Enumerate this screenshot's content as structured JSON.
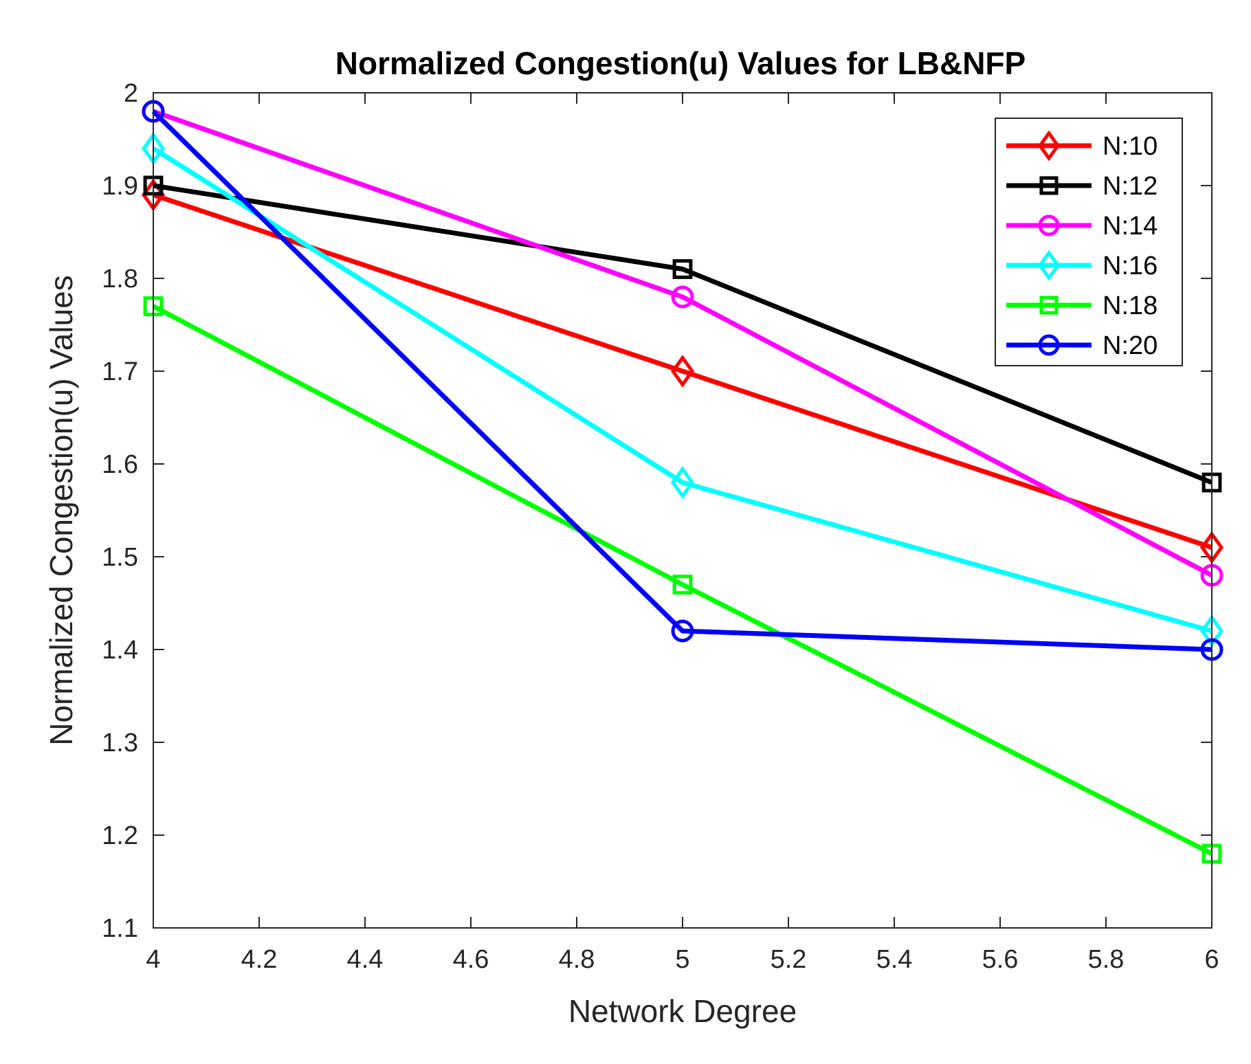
{
  "chart_data": {
    "type": "line",
    "title": "Normalized Congestion(u) Values for LB&NFP",
    "xlabel": "Network Degree",
    "ylabel": "Normalized Congestion(u) Values",
    "xlim": [
      4,
      6
    ],
    "ylim": [
      1.1,
      2
    ],
    "xticks": [
      "4",
      "4.2",
      "4.4",
      "4.6",
      "4.8",
      "5",
      "5.2",
      "5.4",
      "5.6",
      "5.8",
      "6"
    ],
    "yticks": [
      "1.1",
      "1.2",
      "1.3",
      "1.4",
      "1.5",
      "1.6",
      "1.7",
      "1.8",
      "1.9",
      "2"
    ],
    "x": [
      4,
      5,
      6
    ],
    "legend_position": "top-right",
    "grid": false,
    "series": [
      {
        "name": "N:10",
        "values": [
          1.89,
          1.7,
          1.51
        ],
        "color": "#ff0000",
        "marker": "diamond"
      },
      {
        "name": "N:12",
        "values": [
          1.9,
          1.81,
          1.58
        ],
        "color": "#000000",
        "marker": "square"
      },
      {
        "name": "N:14",
        "values": [
          1.98,
          1.78,
          1.48
        ],
        "color": "#ff00ff",
        "marker": "circle"
      },
      {
        "name": "N:16",
        "values": [
          1.94,
          1.58,
          1.42
        ],
        "color": "#00ffff",
        "marker": "diamond"
      },
      {
        "name": "N:18",
        "values": [
          1.77,
          1.47,
          1.18
        ],
        "color": "#00ff00",
        "marker": "square"
      },
      {
        "name": "N:20",
        "values": [
          1.98,
          1.42,
          1.4
        ],
        "color": "#0000ff",
        "marker": "circle"
      }
    ]
  }
}
